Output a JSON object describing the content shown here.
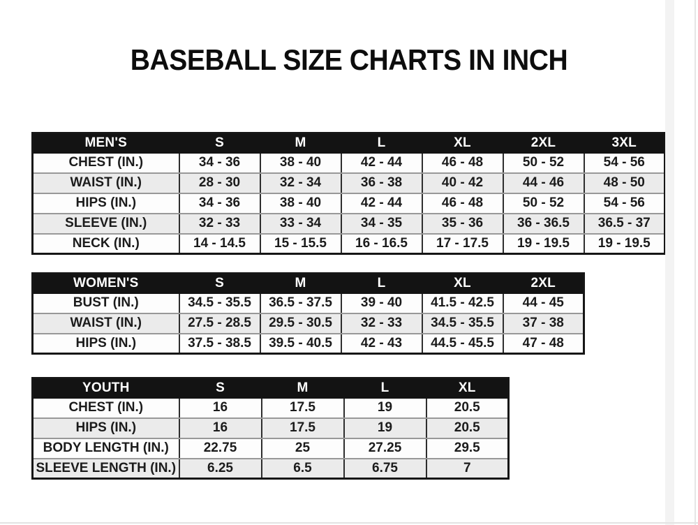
{
  "page": {
    "title": "BASEBALL SIZE CHARTS IN INCH",
    "unit": "INCH"
  },
  "tables": [
    {
      "name": "mens",
      "header": [
        "MEN'S",
        "S",
        "M",
        "L",
        "XL",
        "2XL",
        "3XL"
      ],
      "rows": [
        {
          "label": "CHEST (IN.)",
          "values": [
            "34 - 36",
            "38 - 40",
            "42 - 44",
            "46 - 48",
            "50 - 52",
            "54 - 56"
          ]
        },
        {
          "label": "WAIST (IN.)",
          "values": [
            "28 - 30",
            "32 - 34",
            "36 - 38",
            "40 - 42",
            "44 - 46",
            "48 - 50"
          ]
        },
        {
          "label": "HIPS (IN.)",
          "values": [
            "34 - 36",
            "38 - 40",
            "42 - 44",
            "46 - 48",
            "50 - 52",
            "54 - 56"
          ]
        },
        {
          "label": "SLEEVE (IN.)",
          "values": [
            "32 - 33",
            "33 - 34",
            "34 - 35",
            "35 - 36",
            "36 - 36.5",
            "36.5 - 37"
          ]
        },
        {
          "label": "NECK (IN.)",
          "values": [
            "14 - 14.5",
            "15 - 15.5",
            "16 - 16.5",
            "17 - 17.5",
            "19 - 19.5",
            "19 - 19.5"
          ]
        }
      ]
    },
    {
      "name": "womens",
      "header": [
        "WOMEN'S",
        "S",
        "M",
        "L",
        "XL",
        "2XL"
      ],
      "rows": [
        {
          "label": "BUST (IN.)",
          "values": [
            "34.5 - 35.5",
            "36.5 - 37.5",
            "39 - 40",
            "41.5 - 42.5",
            "44 - 45"
          ]
        },
        {
          "label": "WAIST (IN.)",
          "values": [
            "27.5 - 28.5",
            "29.5 - 30.5",
            "32 - 33",
            "34.5 - 35.5",
            "37 - 38"
          ]
        },
        {
          "label": "HIPS (IN.)",
          "values": [
            "37.5 - 38.5",
            "39.5 - 40.5",
            "42 - 43",
            "44.5 - 45.5",
            "47 - 48"
          ]
        }
      ]
    },
    {
      "name": "youth",
      "header": [
        "YOUTH",
        "S",
        "M",
        "L",
        "XL"
      ],
      "rows": [
        {
          "label": "CHEST (IN.)",
          "values": [
            "16",
            "17.5",
            "19",
            "20.5"
          ]
        },
        {
          "label": "HIPS (IN.)",
          "values": [
            "16",
            "17.5",
            "19",
            "20.5"
          ]
        },
        {
          "label": "BODY LENGTH (IN.)",
          "values": [
            "22.75",
            "25",
            "27.25",
            "29.5"
          ]
        },
        {
          "label": "SLEEVE LENGTH (IN.)",
          "values": [
            "6.25",
            "6.5",
            "6.75",
            "7"
          ]
        }
      ]
    }
  ],
  "colors": {
    "header_bg": "#131313",
    "header_text": "#ffffff",
    "row_alt_bg": "#ebebeb",
    "row_bg": "#fdfdfd",
    "text": "#1b1b1b",
    "outer_border": "#161616",
    "row_divider": "#989898",
    "column_divider": "#2e2e2e"
  }
}
